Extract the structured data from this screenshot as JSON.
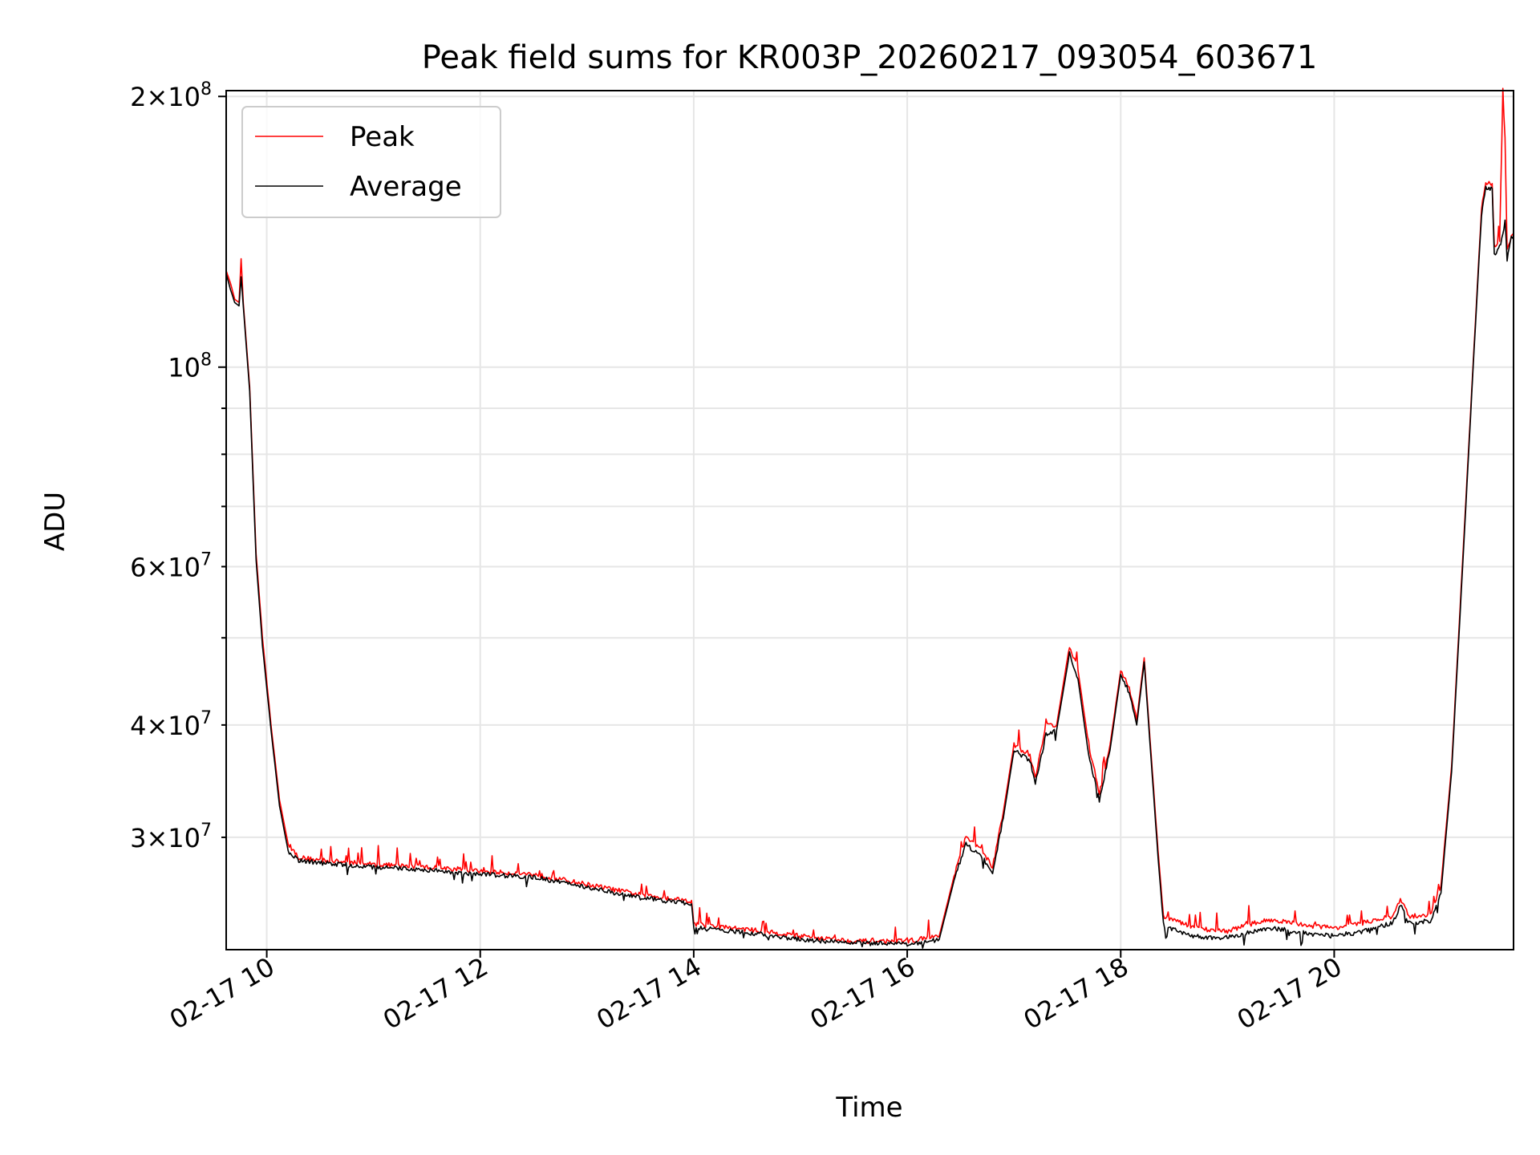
{
  "chart_data": {
    "type": "line",
    "title": "Peak field sums for KR003P_20260217_093054_603671",
    "xlabel": "Time",
    "ylabel": "ADU",
    "yscale": "log",
    "ylim": [
      22500000,
      203000000
    ],
    "xlim_hours": [
      9.62,
      21.68
    ],
    "grid": true,
    "legend_position": "upper-left",
    "x_ticks": [
      {
        "hour": 10,
        "label": "02-17 10"
      },
      {
        "hour": 12,
        "label": "02-17 12"
      },
      {
        "hour": 14,
        "label": "02-17 14"
      },
      {
        "hour": 16,
        "label": "02-17 16"
      },
      {
        "hour": 18,
        "label": "02-17 18"
      },
      {
        "hour": 20,
        "label": "02-17 20"
      }
    ],
    "y_ticks_major": [
      {
        "value": 100000000,
        "base": "10",
        "exp": "8",
        "mant": ""
      },
      {
        "value": 200000000,
        "base": "10",
        "exp": "8",
        "mant": "2"
      }
    ],
    "y_ticks_minor": [
      {
        "value": 30000000,
        "mant": "3",
        "base": "10",
        "exp": "7"
      },
      {
        "value": 40000000,
        "mant": "4",
        "base": "10",
        "exp": "7"
      },
      {
        "value": 60000000,
        "mant": "6",
        "base": "10",
        "exp": "7"
      }
    ],
    "y_minor_unlabeled": [
      50000000,
      70000000,
      80000000,
      90000000
    ],
    "colors": {
      "peak": "#ff0000",
      "average": "#000000",
      "grid": "#e6e6e6"
    },
    "series": [
      {
        "name": "Peak",
        "color": "#ff0000",
        "points": [
          [
            9.62,
            128000000
          ],
          [
            9.66,
            124000000
          ],
          [
            9.7,
            119000000
          ],
          [
            9.74,
            118000000
          ],
          [
            9.76,
            132000000
          ],
          [
            9.78,
            118000000
          ],
          [
            9.84,
            95000000
          ],
          [
            9.9,
            62000000
          ],
          [
            9.96,
            50000000
          ],
          [
            10.04,
            40000000
          ],
          [
            10.12,
            33000000
          ],
          [
            10.2,
            29500000
          ],
          [
            10.3,
            28500000
          ],
          [
            10.5,
            28300000
          ],
          [
            11.0,
            28000000
          ],
          [
            11.5,
            27800000
          ],
          [
            12.0,
            27500000
          ],
          [
            12.5,
            27300000
          ],
          [
            13.0,
            26600000
          ],
          [
            13.5,
            25900000
          ],
          [
            13.98,
            25500000
          ],
          [
            14.0,
            24000000
          ],
          [
            14.5,
            23700000
          ],
          [
            15.0,
            23300000
          ],
          [
            15.5,
            23000000
          ],
          [
            16.0,
            23000000
          ],
          [
            16.3,
            23300000
          ],
          [
            16.45,
            27500000
          ],
          [
            16.55,
            30000000
          ],
          [
            16.7,
            29000000
          ],
          [
            16.8,
            27800000
          ],
          [
            16.9,
            32000000
          ],
          [
            17.0,
            38000000
          ],
          [
            17.15,
            37000000
          ],
          [
            17.2,
            35000000
          ],
          [
            17.3,
            40000000
          ],
          [
            17.4,
            40000000
          ],
          [
            17.52,
            49000000
          ],
          [
            17.6,
            46000000
          ],
          [
            17.7,
            38000000
          ],
          [
            17.8,
            33500000
          ],
          [
            17.9,
            38000000
          ],
          [
            18.0,
            46000000
          ],
          [
            18.08,
            44000000
          ],
          [
            18.15,
            40500000
          ],
          [
            18.22,
            47500000
          ],
          [
            18.35,
            29000000
          ],
          [
            18.4,
            24500000
          ],
          [
            18.6,
            24000000
          ],
          [
            18.8,
            23700000
          ],
          [
            19.0,
            23600000
          ],
          [
            19.2,
            24000000
          ],
          [
            19.4,
            24300000
          ],
          [
            19.6,
            24100000
          ],
          [
            19.8,
            23900000
          ],
          [
            20.0,
            23800000
          ],
          [
            20.2,
            24000000
          ],
          [
            20.4,
            24300000
          ],
          [
            20.55,
            24500000
          ],
          [
            20.62,
            25600000
          ],
          [
            20.7,
            24500000
          ],
          [
            20.9,
            24600000
          ],
          [
            21.0,
            26500000
          ],
          [
            21.1,
            36000000
          ],
          [
            21.2,
            60000000
          ],
          [
            21.3,
            100000000
          ],
          [
            21.38,
            150000000
          ],
          [
            21.42,
            160000000
          ],
          [
            21.45,
            160000000
          ],
          [
            21.48,
            160000000
          ],
          [
            21.5,
            135000000
          ],
          [
            21.55,
            138000000
          ],
          [
            21.58,
            203000000
          ],
          [
            21.6,
            180000000
          ],
          [
            21.62,
            135000000
          ],
          [
            21.66,
            140000000
          ],
          [
            21.68,
            141000000
          ]
        ]
      },
      {
        "name": "Average",
        "color": "#000000",
        "points": [
          [
            9.62,
            127000000
          ],
          [
            9.66,
            122000000
          ],
          [
            9.7,
            118000000
          ],
          [
            9.74,
            117000000
          ],
          [
            9.76,
            126000000
          ],
          [
            9.78,
            117000000
          ],
          [
            9.84,
            94000000
          ],
          [
            9.9,
            61000000
          ],
          [
            9.96,
            49000000
          ],
          [
            10.04,
            39500000
          ],
          [
            10.12,
            32500000
          ],
          [
            10.2,
            29000000
          ],
          [
            10.3,
            28300000
          ],
          [
            10.5,
            28100000
          ],
          [
            11.0,
            27800000
          ],
          [
            11.5,
            27600000
          ],
          [
            12.0,
            27300000
          ],
          [
            12.5,
            27100000
          ],
          [
            13.0,
            26400000
          ],
          [
            13.5,
            25700000
          ],
          [
            13.98,
            25300000
          ],
          [
            14.0,
            23800000
          ],
          [
            14.5,
            23500000
          ],
          [
            15.0,
            23100000
          ],
          [
            15.5,
            22900000
          ],
          [
            16.0,
            22800000
          ],
          [
            16.3,
            23100000
          ],
          [
            16.45,
            27200000
          ],
          [
            16.55,
            29500000
          ],
          [
            16.7,
            28500000
          ],
          [
            16.8,
            27500000
          ],
          [
            16.9,
            31500000
          ],
          [
            17.0,
            37500000
          ],
          [
            17.15,
            36500000
          ],
          [
            17.2,
            34500000
          ],
          [
            17.3,
            39000000
          ],
          [
            17.4,
            39500000
          ],
          [
            17.52,
            48000000
          ],
          [
            17.6,
            45000000
          ],
          [
            17.7,
            37000000
          ],
          [
            17.8,
            33000000
          ],
          [
            17.9,
            37500000
          ],
          [
            18.0,
            45500000
          ],
          [
            18.08,
            43500000
          ],
          [
            18.15,
            40000000
          ],
          [
            18.22,
            47000000
          ],
          [
            18.35,
            28500000
          ],
          [
            18.4,
            24000000
          ],
          [
            18.6,
            23400000
          ],
          [
            18.8,
            23200000
          ],
          [
            19.0,
            23200000
          ],
          [
            19.2,
            23500000
          ],
          [
            19.4,
            23800000
          ],
          [
            19.6,
            23600000
          ],
          [
            19.8,
            23400000
          ],
          [
            20.0,
            23300000
          ],
          [
            20.2,
            23500000
          ],
          [
            20.4,
            23800000
          ],
          [
            20.55,
            24100000
          ],
          [
            20.62,
            25200000
          ],
          [
            20.7,
            24100000
          ],
          [
            20.9,
            24200000
          ],
          [
            21.0,
            26000000
          ],
          [
            21.1,
            35500000
          ],
          [
            21.2,
            59000000
          ],
          [
            21.3,
            99000000
          ],
          [
            21.38,
            148000000
          ],
          [
            21.42,
            158000000
          ],
          [
            21.45,
            158000000
          ],
          [
            21.48,
            158000000
          ],
          [
            21.5,
            133000000
          ],
          [
            21.55,
            136000000
          ],
          [
            21.58,
            140000000
          ],
          [
            21.6,
            145000000
          ],
          [
            21.62,
            132000000
          ],
          [
            21.66,
            139000000
          ],
          [
            21.68,
            140000000
          ]
        ]
      }
    ]
  }
}
